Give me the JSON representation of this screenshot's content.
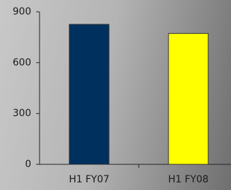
{
  "chart_data": {
    "type": "bar",
    "categories": [
      "H1 FY07",
      "H1 FY08"
    ],
    "values": [
      826,
      772
    ],
    "colors": [
      "#00305e",
      "#ffff00"
    ],
    "ylim": [
      0,
      900
    ],
    "yticks": [
      0,
      300,
      600,
      900
    ],
    "grid": false
  }
}
